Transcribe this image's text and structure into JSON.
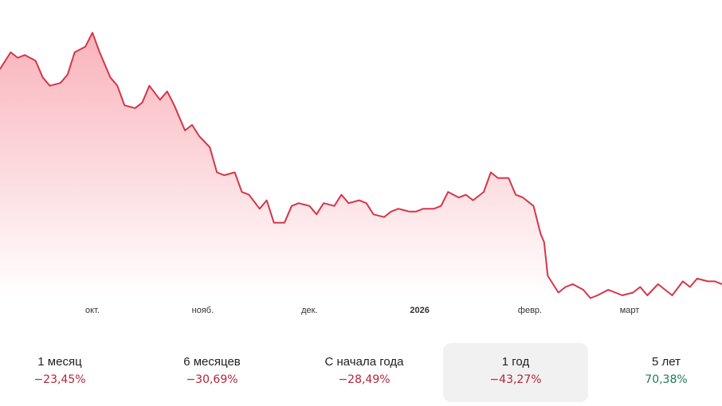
{
  "chart_data": {
    "type": "area",
    "x": [
      "2025-09-05",
      "2025-09-08",
      "2025-09-10",
      "2025-09-12",
      "2025-09-15",
      "2025-09-17",
      "2025-09-19",
      "2025-09-22",
      "2025-09-24",
      "2025-09-26",
      "2025-09-29",
      "2025-10-01",
      "2025-10-03",
      "2025-10-06",
      "2025-10-08",
      "2025-10-10",
      "2025-10-13",
      "2025-10-15",
      "2025-10-17",
      "2025-10-20",
      "2025-10-22",
      "2025-10-24",
      "2025-10-27",
      "2025-10-29",
      "2025-10-31",
      "2025-11-03",
      "2025-11-05",
      "2025-11-07",
      "2025-11-10",
      "2025-11-12",
      "2025-11-14",
      "2025-11-17",
      "2025-11-19",
      "2025-11-21",
      "2025-11-24",
      "2025-11-26",
      "2025-11-28",
      "2025-12-01",
      "2025-12-03",
      "2025-12-05",
      "2025-12-08",
      "2025-12-10",
      "2025-12-12",
      "2025-12-15",
      "2025-12-17",
      "2025-12-19",
      "2025-12-22",
      "2025-12-24",
      "2025-12-26",
      "2025-12-29",
      "2025-12-31",
      "2026-01-02",
      "2026-01-05",
      "2026-01-07",
      "2026-01-09",
      "2026-01-12",
      "2026-01-14",
      "2026-01-16",
      "2026-01-19",
      "2026-01-21",
      "2026-01-23",
      "2026-01-26",
      "2026-01-28",
      "2026-01-30",
      "2026-02-02",
      "2026-02-04",
      "2026-02-05",
      "2026-02-06",
      "2026-02-09",
      "2026-02-11",
      "2026-02-13",
      "2026-02-16",
      "2026-02-18",
      "2026-02-20",
      "2026-02-23",
      "2026-02-25",
      "2026-02-27",
      "2026-03-02",
      "2026-03-04",
      "2026-03-06",
      "2026-03-09",
      "2026-03-11",
      "2026-03-13",
      "2026-03-16",
      "2026-03-18",
      "2026-03-20",
      "2026-03-23",
      "2026-03-25",
      "2026-03-27"
    ],
    "values": [
      141,
      147,
      145,
      146,
      144,
      138,
      135,
      136,
      139,
      147,
      149,
      154,
      147,
      138,
      135,
      128,
      127,
      129,
      135,
      130,
      133,
      128,
      119,
      121,
      117,
      113,
      104,
      103,
      104,
      97,
      96,
      91,
      94,
      86,
      86,
      92,
      93,
      92,
      89,
      93,
      92,
      96,
      93,
      94,
      93,
      89,
      88,
      90,
      91,
      90,
      90,
      91,
      91,
      92,
      97,
      95,
      96,
      94,
      97,
      104,
      102,
      102,
      96,
      95,
      92,
      82,
      79,
      67,
      61,
      63,
      64,
      62,
      59,
      60,
      62,
      61,
      60,
      61,
      63,
      60,
      64,
      62,
      60,
      65,
      63,
      66,
      65,
      65,
      64
    ],
    "x_ticks": [
      "окт.",
      "нояб.",
      "дек.",
      "2026",
      "февр.",
      "март"
    ],
    "x_tick_dates": [
      "2025-10-01",
      "2025-11-01",
      "2025-12-01",
      "2026-01-01",
      "2026-02-01",
      "2026-03-01"
    ],
    "x_tick_bold": [
      false,
      false,
      false,
      true,
      false,
      false
    ],
    "grid": false,
    "legend": "none"
  },
  "colors": {
    "line": "#d4364a",
    "area_top": "#f9b3bb",
    "area_bottom": "#ffffff",
    "negative": "#b5233b",
    "positive": "#1d7a5b",
    "selected_bg": "#f1f1f1"
  },
  "periods": [
    {
      "label": "1 месяц",
      "value": "−23,45%",
      "trend": "negative",
      "selected": false
    },
    {
      "label": "6 месяцев",
      "value": "−30,69%",
      "trend": "negative",
      "selected": false
    },
    {
      "label": "С начала года",
      "value": "−28,49%",
      "trend": "negative",
      "selected": false
    },
    {
      "label": "1 год",
      "value": "−43,27%",
      "trend": "negative",
      "selected": true
    },
    {
      "label": "5 лет",
      "value": "70,38%",
      "trend": "positive",
      "selected": false
    }
  ]
}
